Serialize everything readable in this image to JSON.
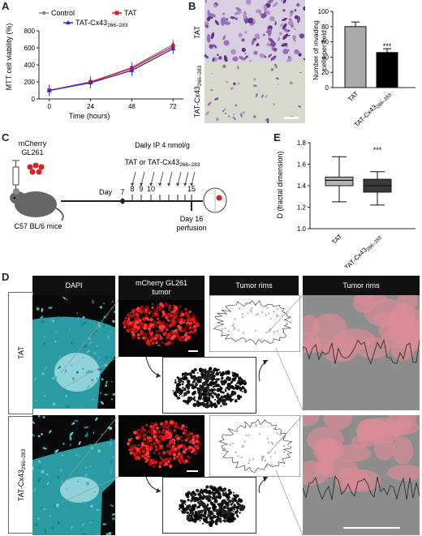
{
  "panel_labels": {
    "a": "A",
    "b": "B",
    "c": "C",
    "d": "D",
    "e": "E"
  },
  "panel_a": {
    "ylabel": "MTT cell viability (%)",
    "xlabel": "Time (hours)",
    "legend": {
      "control": "Control",
      "tat": "TAT",
      "tatcx_main": "TAT-Cx43",
      "tatcx_sub": "266–283"
    }
  },
  "panel_b": {
    "row_tat": "TAT",
    "row_tatcx_main": "TAT-Cx43",
    "row_tatcx_sub": "266–283",
    "ylabel_line1": "Number of invading",
    "ylabel_line2": "cells per field",
    "sig": "***"
  },
  "panel_c": {
    "cells_line1": "mCherry",
    "cells_line2": "GL261",
    "mice": "C57 BL/6 mice",
    "treatment_line1": "Daily IP 4 nmol/g",
    "treatment_line2_main": "TAT or TAT-Cx43",
    "treatment_line2_sub": "266–283",
    "day_word": "Day",
    "days": [
      "7",
      "8",
      "9",
      "10",
      "",
      "",
      "",
      "",
      "15"
    ],
    "endpoint_line1": "Day 16",
    "endpoint_line2": "perfusion"
  },
  "panel_e": {
    "ylabel": "D (fractal dimension)",
    "sig": "***"
  },
  "panel_d": {
    "headers": [
      "DAPI",
      "mCherry GL261\ntumor",
      "Tumor rims",
      "Tumor rims"
    ],
    "rows": [
      {
        "main": "TAT",
        "sub": ""
      },
      {
        "main": "TAT-Cx43",
        "sub": "266–283"
      }
    ]
  },
  "chart_data": [
    {
      "type": "line",
      "panel": "A",
      "x": [
        0,
        24,
        48,
        72
      ],
      "series": [
        {
          "name": "Control",
          "values": [
            100,
            195,
            370,
            640
          ],
          "color": "#8a8a8a"
        },
        {
          "name": "TAT",
          "values": [
            100,
            200,
            360,
            615
          ],
          "color": "#e02020"
        },
        {
          "name": "TAT-Cx43266–283",
          "values": [
            100,
            190,
            335,
            590
          ],
          "color": "#2b2be0"
        }
      ],
      "xlabel": "Time (hours)",
      "ylabel": "MTT cell viability (%)",
      "xticks": [
        0,
        24,
        48,
        72
      ],
      "yticks": [
        0,
        200,
        400,
        600,
        800
      ],
      "ylim": [
        0,
        800
      ]
    },
    {
      "type": "bar",
      "panel": "B",
      "categories": [
        "TAT",
        "TAT-Cx43266–283"
      ],
      "values": [
        80,
        46
      ],
      "errors": [
        6,
        5
      ],
      "colors": [
        "#aaaaaa",
        "#000000"
      ],
      "ylabel": "Number of invading cells per field",
      "yticks": [
        0,
        20,
        40,
        60,
        80,
        100
      ],
      "ylim": [
        0,
        100
      ]
    },
    {
      "type": "box",
      "panel": "E",
      "categories": [
        "TAT",
        "TAT-Cx43266–283"
      ],
      "boxes": [
        {
          "min": 1.25,
          "q1": 1.4,
          "median": 1.45,
          "q3": 1.48,
          "max": 1.67,
          "fill": "#b5b5b5"
        },
        {
          "min": 1.22,
          "q1": 1.34,
          "median": 1.4,
          "q3": 1.46,
          "max": 1.53,
          "fill": "#3a3a3a"
        }
      ],
      "ylabel": "D (fractal dimension)",
      "yticks": [
        1.0,
        1.2,
        1.4,
        1.6,
        1.8
      ],
      "ylim": [
        1.0,
        1.8
      ]
    }
  ]
}
